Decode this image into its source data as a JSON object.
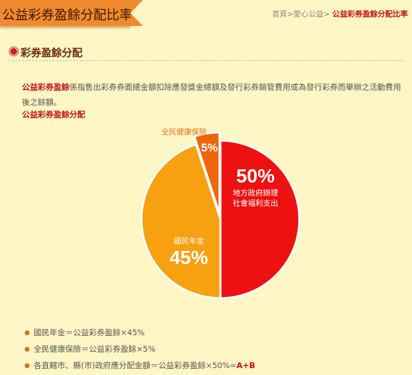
{
  "header": {
    "title": "公益彩券盈餘分配比率"
  },
  "breadcrumb": {
    "home": "首頁",
    "sep": ">",
    "parent": "愛心公益",
    "current": "公益彩券盈餘分配比率"
  },
  "section": {
    "title": "彩券盈餘分配"
  },
  "description": {
    "term": "公益彩券盈餘",
    "text": "係指售出彩券券面總金額扣除應發獎金總額及發行彩券銷管費用或為發行彩券而舉辦之活動費用後之餘額。"
  },
  "subheading": "公益彩券盈餘分配",
  "chart_data": {
    "type": "pie",
    "slices": [
      {
        "label": "地方政府辦理社會福利支出",
        "label_lines": [
          "地方政府辦理",
          "社會福利支出"
        ],
        "value": 50,
        "value_label": "50%",
        "color": "#ee1111"
      },
      {
        "label": "國民年金",
        "value": 45,
        "value_label": "45%",
        "color": "#f7a010"
      },
      {
        "label": "全民健康保險",
        "value": 5,
        "value_label": "5%",
        "color": "#f0650a"
      }
    ]
  },
  "formulas": [
    {
      "text": "國民年金＝公益彩券盈餘×45%"
    },
    {
      "text": "全民健康保險＝公益彩券盈餘×5%"
    },
    {
      "text": "各直轄市、縣(市)政府應分配金額＝公益彩券盈餘×50%=",
      "a": "A",
      "plus": "+",
      "b": "B"
    }
  ]
}
